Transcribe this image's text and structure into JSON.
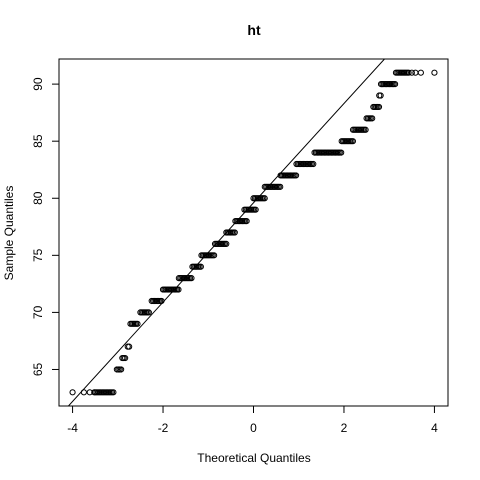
{
  "chart_data": {
    "type": "scatter",
    "title": "ht",
    "xlabel": "Theoretical Quantiles",
    "ylabel": "Sample Quantiles",
    "xlim": [
      -4.3,
      4.3
    ],
    "ylim": [
      61.8,
      92.2
    ],
    "x_ticks": [
      "-4",
      "-2",
      "0",
      "2",
      "4"
    ],
    "y_ticks": [
      "65",
      "70",
      "75",
      "80",
      "85",
      "90"
    ],
    "x_tick_values": [
      -4,
      -2,
      0,
      2,
      4
    ],
    "y_tick_values": [
      65,
      70,
      75,
      80,
      85,
      90
    ],
    "grid": false,
    "reference_line": {
      "intercept": 79.6,
      "slope": 4.35
    },
    "steps": [
      {
        "y": 63,
        "x_start": -3.5,
        "x_end": -3.08
      },
      {
        "y": 65,
        "x_start": -3.02,
        "x_end": -2.9
      },
      {
        "y": 66,
        "x_start": -2.9,
        "x_end": -2.82
      },
      {
        "y": 67,
        "x_start": -2.78,
        "x_end": -2.74
      },
      {
        "y": 69,
        "x_start": -2.72,
        "x_end": -2.55
      },
      {
        "y": 70,
        "x_start": -2.5,
        "x_end": -2.3
      },
      {
        "y": 71,
        "x_start": -2.25,
        "x_end": -2.03
      },
      {
        "y": 72,
        "x_start": -2.0,
        "x_end": -1.65
      },
      {
        "y": 73,
        "x_start": -1.65,
        "x_end": -1.35
      },
      {
        "y": 74,
        "x_start": -1.35,
        "x_end": -1.15
      },
      {
        "y": 75,
        "x_start": -1.15,
        "x_end": -0.85
      },
      {
        "y": 76,
        "x_start": -0.85,
        "x_end": -0.6
      },
      {
        "y": 77,
        "x_start": -0.6,
        "x_end": -0.4
      },
      {
        "y": 78,
        "x_start": -0.4,
        "x_end": -0.15
      },
      {
        "y": 79,
        "x_start": -0.2,
        "x_end": 0.05
      },
      {
        "y": 80,
        "x_start": 0.0,
        "x_end": 0.25
      },
      {
        "y": 81,
        "x_start": 0.25,
        "x_end": 0.6
      },
      {
        "y": 82,
        "x_start": 0.6,
        "x_end": 0.95
      },
      {
        "y": 83,
        "x_start": 0.95,
        "x_end": 1.35
      },
      {
        "y": 84,
        "x_start": 1.35,
        "x_end": 1.95
      },
      {
        "y": 85,
        "x_start": 1.95,
        "x_end": 2.2
      },
      {
        "y": 86,
        "x_start": 2.2,
        "x_end": 2.5
      },
      {
        "y": 87,
        "x_start": 2.5,
        "x_end": 2.65
      },
      {
        "y": 88,
        "x_start": 2.65,
        "x_end": 2.78
      },
      {
        "y": 89,
        "x_start": 2.78,
        "x_end": 2.82
      },
      {
        "y": 90,
        "x_start": 2.82,
        "x_end": 3.15
      },
      {
        "y": 91,
        "x_start": 3.15,
        "x_end": 3.45
      }
    ],
    "extreme_points": [
      {
        "x": -4.0,
        "y": 63
      },
      {
        "x": -3.75,
        "y": 63
      },
      {
        "x": -3.62,
        "y": 63
      },
      {
        "x": -3.52,
        "y": 63
      },
      {
        "x": 3.5,
        "y": 91
      },
      {
        "x": 3.58,
        "y": 91
      },
      {
        "x": 3.7,
        "y": 91
      },
      {
        "x": 4.0,
        "y": 91
      }
    ]
  }
}
